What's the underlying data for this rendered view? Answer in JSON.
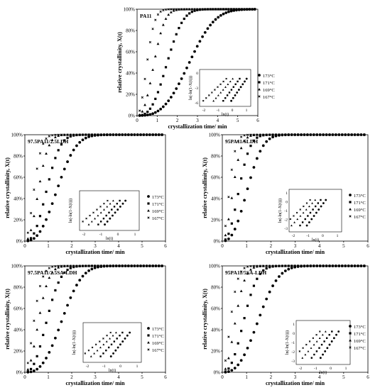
{
  "figure": {
    "legend_temps": [
      "173°C",
      "171°C",
      "169°C",
      "167°C"
    ],
    "inset_ylabel": "ln(-ln(1-X(t)))",
    "inset_xlabel": "ln(t)"
  },
  "chart_data": [
    {
      "type": "scatter",
      "title": "PA11",
      "xlabel": "crystallization time/ min",
      "ylabel": "relative crystallinity, X(t)",
      "xlim": [
        0,
        6
      ],
      "ylim": [
        0,
        1
      ],
      "xticks": [
        "0",
        "1",
        "2",
        "3",
        "4",
        "5",
        "6"
      ],
      "yticks": [
        "0%",
        "20%",
        "40%",
        "60%",
        "80%",
        "100%"
      ],
      "series": [
        {
          "name": "173°C",
          "t_half": 2.6,
          "n": 3.0,
          "marker": "circle"
        },
        {
          "name": "171°C",
          "t_half": 1.5,
          "n": 2.8,
          "marker": "square"
        },
        {
          "name": "169°C",
          "t_half": 0.85,
          "n": 2.4,
          "marker": "triangle"
        },
        {
          "name": "167°C",
          "t_half": 0.5,
          "n": 2.0,
          "marker": "cross"
        }
      ],
      "inset": {
        "xticks": [
          "-2",
          "-1",
          "0",
          "1"
        ],
        "yticks": [
          "0",
          "-3",
          "-6"
        ]
      }
    },
    {
      "type": "scatter",
      "title": "97.5PA11/2.5LDH",
      "xlabel": "crystallization time/ min",
      "ylabel": "relative crystallinity, X(t)",
      "xlim": [
        0,
        6
      ],
      "ylim": [
        0,
        1
      ],
      "xticks": [
        "0",
        "1",
        "2",
        "3",
        "4",
        "5",
        "6"
      ],
      "yticks": [
        "0%",
        "20%",
        "40%",
        "60%",
        "80%",
        "100%"
      ],
      "series": [
        {
          "name": "173°C",
          "t_half": 1.4,
          "n": 2.6,
          "marker": "circle"
        },
        {
          "name": "171°C",
          "t_half": 0.95,
          "n": 2.5,
          "marker": "square"
        },
        {
          "name": "169°C",
          "t_half": 0.6,
          "n": 2.2,
          "marker": "triangle"
        },
        {
          "name": "167°C",
          "t_half": 0.4,
          "n": 1.9,
          "marker": "cross"
        }
      ],
      "inset": {
        "xticks": [
          "-2",
          "-1",
          "0",
          "1"
        ],
        "yticks": []
      }
    },
    {
      "type": "scatter",
      "title": "95PA11/5LDH",
      "xlabel": "crystallization time/ min",
      "ylabel": "relative crystallinity, X(t)",
      "xlim": [
        0,
        6
      ],
      "ylim": [
        0,
        1
      ],
      "xticks": [
        "0",
        "1",
        "2",
        "3",
        "4",
        "5",
        "6"
      ],
      "yticks": [
        "0%",
        "20%",
        "40%",
        "60%",
        "80%",
        "100%"
      ],
      "series": [
        {
          "name": "173°C",
          "t_half": 1.05,
          "n": 2.5,
          "marker": "circle"
        },
        {
          "name": "171°C",
          "t_half": 0.7,
          "n": 2.3,
          "marker": "square"
        },
        {
          "name": "169°C",
          "t_half": 0.45,
          "n": 2.0,
          "marker": "triangle"
        },
        {
          "name": "167°C",
          "t_half": 0.3,
          "n": 1.8,
          "marker": "cross"
        }
      ],
      "inset": {
        "xticks": [
          "-2",
          "-1",
          "0",
          "1"
        ],
        "yticks": [
          "1",
          "0",
          "-1",
          "-2",
          "-3"
        ]
      }
    },
    {
      "type": "scatter",
      "title": "97.5PA11/2.5SA-LDH",
      "xlabel": "crystallization time/ min",
      "ylabel": "relative crystallinity, X(t)",
      "xlim": [
        0,
        6
      ],
      "ylim": [
        0,
        1
      ],
      "xticks": [
        "0",
        "1",
        "2",
        "3",
        "4",
        "5",
        "6"
      ],
      "yticks": [
        "0%",
        "20%",
        "40%",
        "60%",
        "80%",
        "100%"
      ],
      "series": [
        {
          "name": "173°C",
          "t_half": 1.6,
          "n": 2.8,
          "marker": "circle"
        },
        {
          "name": "171°C",
          "t_half": 0.95,
          "n": 2.4,
          "marker": "square"
        },
        {
          "name": "169°C",
          "t_half": 0.6,
          "n": 2.1,
          "marker": "triangle"
        },
        {
          "name": "167°C",
          "t_half": 0.4,
          "n": 1.8,
          "marker": "cross"
        }
      ],
      "inset": {
        "xticks": [
          "-2",
          "-1",
          "0",
          "1"
        ],
        "yticks": []
      }
    },
    {
      "type": "scatter",
      "title": "95PA11/5SA-LDH",
      "xlabel": "crystallization time/ min",
      "ylabel": "relative crystallinity, X(t)",
      "xlim": [
        0,
        6
      ],
      "ylim": [
        0,
        1
      ],
      "xticks": [
        "0",
        "1",
        "2",
        "3",
        "4",
        "5",
        "6"
      ],
      "yticks": [
        "0%",
        "20%",
        "40%",
        "60%",
        "80%",
        "100%"
      ],
      "series": [
        {
          "name": "173°C",
          "t_half": 1.5,
          "n": 2.7,
          "marker": "circle"
        },
        {
          "name": "171°C",
          "t_half": 0.9,
          "n": 2.4,
          "marker": "square"
        },
        {
          "name": "169°C",
          "t_half": 0.55,
          "n": 2.1,
          "marker": "triangle"
        },
        {
          "name": "167°C",
          "t_half": 0.35,
          "n": 1.8,
          "marker": "cross"
        }
      ],
      "inset": {
        "xticks": [
          "-2",
          "-1",
          "0",
          "1"
        ],
        "yticks": [
          "1",
          "0",
          "-1",
          "-2",
          "-3"
        ]
      }
    }
  ]
}
